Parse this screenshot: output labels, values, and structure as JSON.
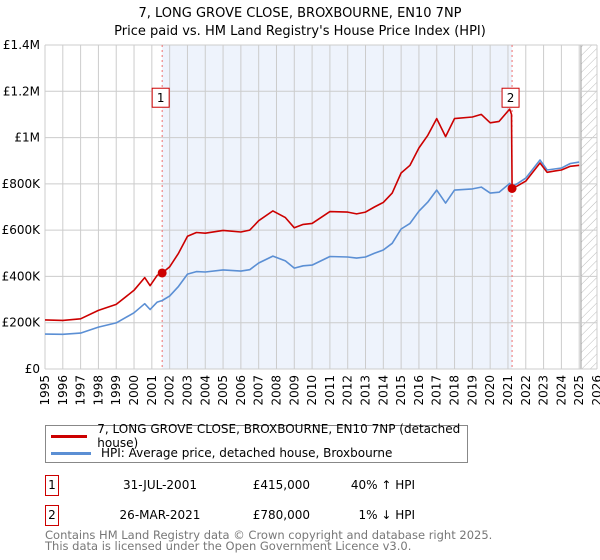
{
  "chart_data": {
    "type": "line",
    "title": "7, LONG GROVE CLOSE, BROXBOURNE, EN10 7NP",
    "subtitle": "Price paid vs. HM Land Registry's House Price Index (HPI)",
    "xlim": [
      1995,
      2026
    ],
    "ylim": [
      0,
      1400000
    ],
    "x_ticks": [
      "1995",
      "1996",
      "1997",
      "1998",
      "1999",
      "2000",
      "2001",
      "2002",
      "2003",
      "2004",
      "2005",
      "2006",
      "2007",
      "2008",
      "2009",
      "2010",
      "2011",
      "2012",
      "2013",
      "2014",
      "2015",
      "2016",
      "2017",
      "2018",
      "2019",
      "2020",
      "2021",
      "2022",
      "2023",
      "2024",
      "2025",
      "2026"
    ],
    "y_ticks": [
      {
        "v": 0,
        "label": "£0"
      },
      {
        "v": 200000,
        "label": "£200K"
      },
      {
        "v": 400000,
        "label": "£400K"
      },
      {
        "v": 600000,
        "label": "£600K"
      },
      {
        "v": 800000,
        "label": "£800K"
      },
      {
        "v": 1000000,
        "label": "£1M"
      },
      {
        "v": 1200000,
        "label": "£1.2M"
      },
      {
        "v": 1400000,
        "label": "£1.4M"
      }
    ],
    "grid": true,
    "shaded_range": [
      2001.58,
      2021.23
    ],
    "hatched_from": 2025.1,
    "series": [
      {
        "name": "7, LONG GROVE CLOSE, BROXBOURNE, EN10 7NP (detached house)",
        "color": "#cc0000",
        "x": [
          1995,
          1996,
          1997,
          1998,
          1999,
          2000,
          2000.6,
          2000.9,
          2001.3,
          2001.58,
          2002,
          2002.5,
          2003,
          2003.5,
          2004,
          2005,
          2006,
          2006.5,
          2007,
          2007.8,
          2008.5,
          2009,
          2009.5,
          2010,
          2011,
          2012,
          2012.5,
          2013,
          2013.5,
          2014,
          2014.5,
          2015,
          2015.5,
          2016,
          2016.5,
          2017,
          2017.5,
          2018,
          2019,
          2019.5,
          2020,
          2020.5,
          2021.1,
          2021.2,
          2021.23,
          2021.5,
          2022,
          2022.8,
          2023.2,
          2023.6,
          2024,
          2024.5,
          2025
        ],
        "y": [
          212000,
          210000,
          217000,
          253000,
          279000,
          340000,
          395000,
          360000,
          405000,
          415000,
          441000,
          500000,
          574000,
          590000,
          587000,
          599000,
          592000,
          600000,
          641000,
          683000,
          654000,
          610000,
          625000,
          629000,
          680000,
          678000,
          670000,
          678000,
          700000,
          720000,
          760000,
          847000,
          880000,
          955000,
          1010000,
          1082000,
          1004000,
          1082000,
          1089000,
          1100000,
          1064000,
          1070000,
          1123000,
          1100000,
          780000,
          790000,
          812000,
          890000,
          850000,
          855000,
          860000,
          876000,
          880000
        ]
      },
      {
        "name": "HPI: Average price, detached house, Broxbourne",
        "color": "#5b8fd4",
        "x": [
          1995,
          1996,
          1997,
          1998,
          1999,
          2000,
          2000.6,
          2000.9,
          2001.3,
          2001.58,
          2002,
          2002.5,
          2003,
          2003.5,
          2004,
          2005,
          2006,
          2006.5,
          2007,
          2007.8,
          2008.5,
          2009,
          2009.5,
          2010,
          2011,
          2012,
          2012.5,
          2013,
          2013.5,
          2014,
          2014.5,
          2015,
          2015.5,
          2016,
          2016.5,
          2017,
          2017.5,
          2018,
          2019,
          2019.5,
          2020,
          2020.5,
          2021.1,
          2021.23,
          2021.5,
          2022,
          2022.8,
          2023.2,
          2023.6,
          2024,
          2024.5,
          2025
        ],
        "y": [
          151000,
          150000,
          155000,
          181000,
          199000,
          243000,
          282000,
          257000,
          289000,
          296000,
          315000,
          357000,
          410000,
          421000,
          419000,
          428000,
          423000,
          429000,
          458000,
          488000,
          467000,
          436000,
          446000,
          449000,
          486000,
          484000,
          479000,
          484000,
          500000,
          514000,
          543000,
          605000,
          629000,
          682000,
          721000,
          773000,
          717000,
          773000,
          778000,
          786000,
          760000,
          764000,
          802000,
          790000,
          800000,
          825000,
          903000,
          860000,
          864000,
          868000,
          888000,
          894000
        ]
      }
    ],
    "sales": [
      {
        "label": "1",
        "x": 2001.58,
        "y": 415000
      },
      {
        "label": "2",
        "x": 2021.23,
        "y": 780000
      }
    ]
  },
  "legend": {
    "property": "7, LONG GROVE CLOSE, BROXBOURNE, EN10 7NP (detached house)",
    "hpi": "HPI: Average price, detached house, Broxbourne"
  },
  "transactions": [
    {
      "num": "1",
      "date": "31-JUL-2001",
      "price": "£415,000",
      "hpi": "40% ↑ HPI"
    },
    {
      "num": "2",
      "date": "26-MAR-2021",
      "price": "£780,000",
      "hpi": "1% ↓ HPI"
    }
  ],
  "footer": {
    "line1": "Contains HM Land Registry data © Crown copyright and database right 2025.",
    "line2": "This data is licensed under the Open Government Licence v3.0."
  },
  "colors": {
    "red": "#cc0000",
    "blue": "#5b8fd4",
    "shade": "#eef3fc"
  }
}
